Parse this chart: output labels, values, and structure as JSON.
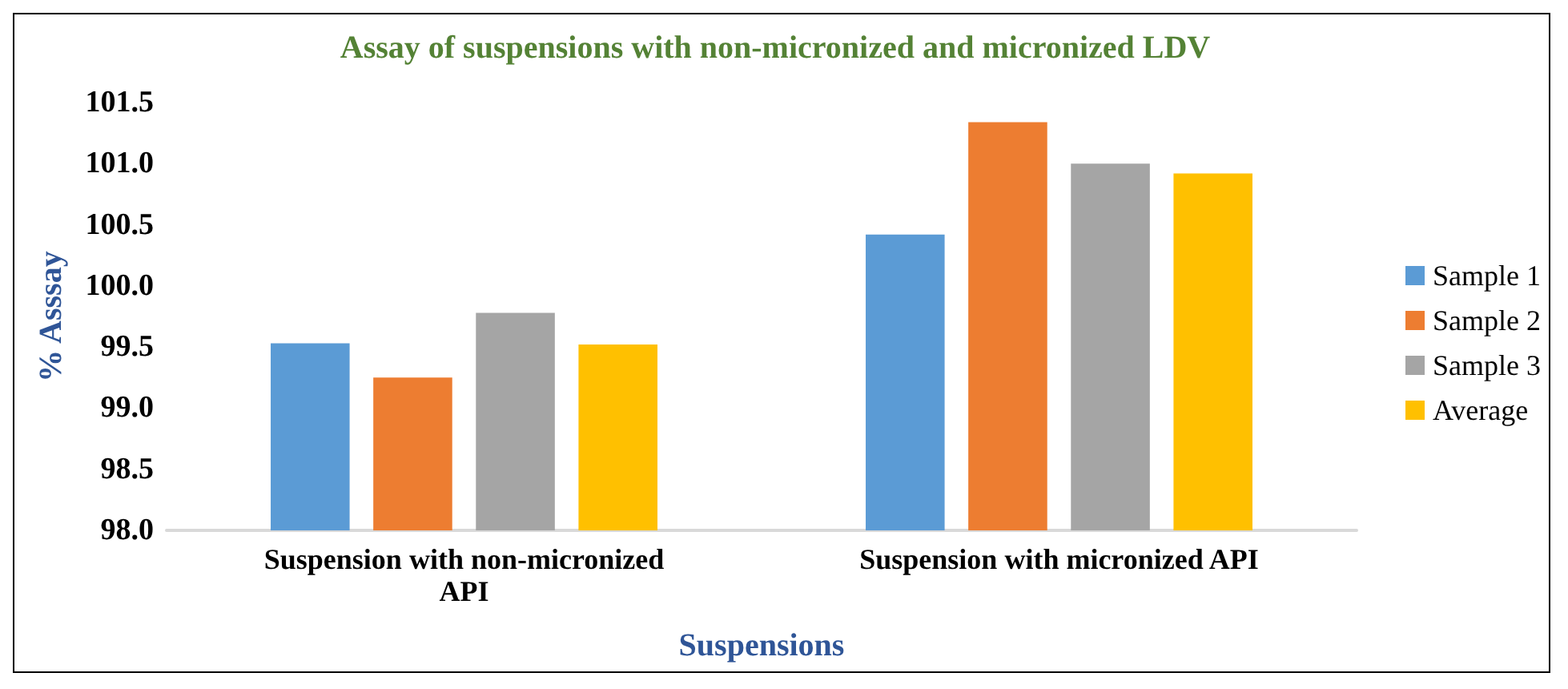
{
  "chart_data": {
    "type": "bar",
    "title": "Assay of suspensions with non-micronized and micronized LDV",
    "xlabel": "Suspensions",
    "ylabel": "% Asssay",
    "categories": [
      "Suspension with non-micronized\nAPI",
      "Suspension with micronized API"
    ],
    "series": [
      {
        "name": "Sample 1",
        "color": "#5b9bd5",
        "values": [
          99.53,
          100.42
        ]
      },
      {
        "name": "Sample 2",
        "color": "#ed7d31",
        "values": [
          99.25,
          101.34
        ]
      },
      {
        "name": "Sample 3",
        "color": "#a5a5a5",
        "values": [
          99.78,
          101.0
        ]
      },
      {
        "name": "Average",
        "color": "#ffc000",
        "values": [
          99.52,
          100.92
        ]
      }
    ],
    "ylim": [
      98.0,
      101.5
    ],
    "yticks": [
      {
        "value": 98,
        "label": "98.0"
      },
      {
        "value": 98.5,
        "label": "98.5"
      },
      {
        "value": 99,
        "label": "99.0"
      },
      {
        "value": 99.5,
        "label": "99.5"
      },
      {
        "value": 100,
        "label": "100.0"
      },
      {
        "value": 100.5,
        "label": "100.5"
      },
      {
        "value": 101,
        "label": "101.0"
      },
      {
        "value": 101.5,
        "label": "101.5"
      }
    ],
    "grid": false,
    "legend": "right"
  }
}
